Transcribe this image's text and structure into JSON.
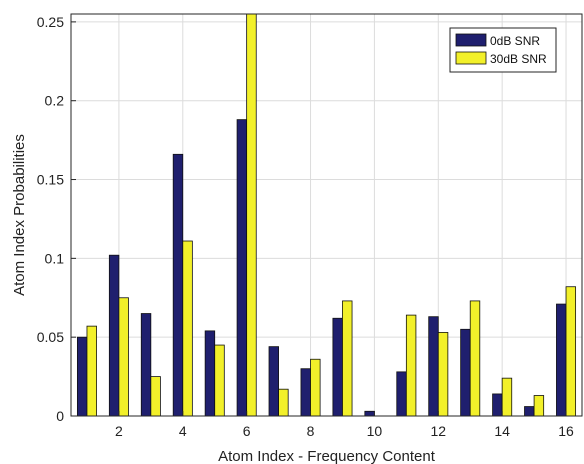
{
  "chart_data": {
    "type": "bar",
    "xlabel": "Atom Index - Frequency Content",
    "ylabel": "Atom Index Probabilities",
    "categories": [
      1,
      2,
      3,
      4,
      5,
      6,
      7,
      8,
      9,
      10,
      11,
      12,
      13,
      14,
      15,
      16
    ],
    "x_ticks": [
      2,
      4,
      6,
      8,
      10,
      12,
      14,
      16
    ],
    "y_ticks": [
      0,
      0.05,
      0.1,
      0.15,
      0.2,
      0.25
    ],
    "y_tick_labels": [
      "0",
      "0.05",
      "0.1",
      "0.15",
      "0.2",
      "0.25"
    ],
    "xlim": [
      0.5,
      16.5
    ],
    "ylim": [
      0,
      0.255
    ],
    "grid": true,
    "legend_position": "top-right",
    "series": [
      {
        "name": "0dB SNR",
        "color": "#1f1f6e",
        "values": [
          0.05,
          0.102,
          0.065,
          0.166,
          0.054,
          0.188,
          0.044,
          0.03,
          0.062,
          0.003,
          0.028,
          0.063,
          0.055,
          0.014,
          0.006,
          0.071
        ]
      },
      {
        "name": "30dB SNR",
        "color": "#f2f02a",
        "values": [
          0.057,
          0.075,
          0.025,
          0.111,
          0.045,
          0.255,
          0.017,
          0.036,
          0.073,
          0.0,
          0.064,
          0.053,
          0.073,
          0.024,
          0.013,
          0.082
        ]
      }
    ]
  }
}
